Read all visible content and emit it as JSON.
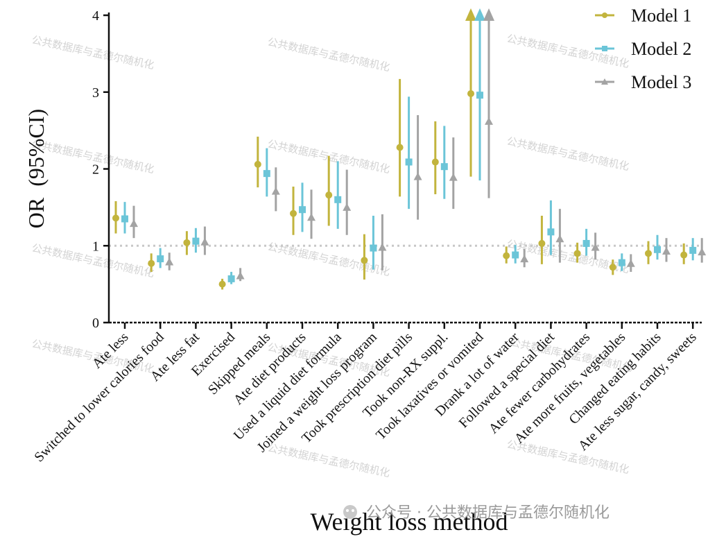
{
  "chart_data": {
    "type": "scatter",
    "subtype": "error-bar",
    "xlabel": "Weight loss method",
    "ylabel": "OR  (95%CI)",
    "ylim": [
      0,
      4
    ],
    "yticks": [
      0,
      1,
      2,
      3,
      4
    ],
    "reference_line": 1,
    "legend_position": "top-right",
    "categories": [
      "Ate less",
      "Switched to lower calories food",
      "Ate less fat",
      "Exercised",
      "Skipped meals",
      "Ate diet products",
      "Used a liquid diet formula",
      "Joined a weight loss program",
      "Took prescription diet pills",
      "Took non-RX suppl.",
      "Took laxatives or vomited",
      "Drank a lot of water",
      "Followed a special diet",
      "Ate fewer carbohydrates",
      "Ate more fruits, vegetables",
      "Changed eating habits",
      "Ate less sugar, candy, sweets"
    ],
    "series": [
      {
        "name": "Model 1",
        "color": "#c2b43d",
        "marker": "circle",
        "or": [
          1.36,
          0.77,
          1.04,
          0.5,
          2.06,
          1.42,
          1.66,
          0.81,
          2.28,
          2.09,
          2.98,
          0.87,
          1.03,
          0.9,
          0.72,
          0.9,
          0.88
        ],
        "lower": [
          1.16,
          0.66,
          0.88,
          0.43,
          1.76,
          1.14,
          1.26,
          0.56,
          1.64,
          1.67,
          1.9,
          0.77,
          0.76,
          0.78,
          0.62,
          0.76,
          0.76
        ],
        "upper": [
          1.58,
          0.9,
          1.19,
          0.57,
          2.42,
          1.77,
          2.17,
          1.15,
          3.17,
          2.62,
          4.0,
          0.99,
          1.39,
          1.04,
          0.82,
          1.06,
          1.03
        ],
        "capped_upper": [
          false,
          false,
          false,
          false,
          false,
          false,
          false,
          false,
          false,
          false,
          true,
          false,
          false,
          false,
          false,
          false,
          false
        ]
      },
      {
        "name": "Model 2",
        "color": "#6bc5d8",
        "marker": "square",
        "or": [
          1.35,
          0.83,
          1.06,
          0.57,
          1.94,
          1.47,
          1.6,
          0.97,
          2.09,
          2.03,
          2.96,
          0.88,
          1.18,
          1.03,
          0.78,
          0.95,
          0.94
        ],
        "lower": [
          1.16,
          0.71,
          0.91,
          0.5,
          1.64,
          1.18,
          1.22,
          0.69,
          1.48,
          1.61,
          1.85,
          0.77,
          0.88,
          0.87,
          0.67,
          0.82,
          0.81
        ],
        "upper": [
          1.57,
          0.97,
          1.23,
          0.66,
          2.27,
          1.82,
          2.1,
          1.39,
          2.94,
          2.56,
          4.0,
          1.01,
          1.59,
          1.22,
          0.9,
          1.14,
          1.1
        ],
        "capped_upper": [
          false,
          false,
          false,
          false,
          false,
          false,
          false,
          false,
          false,
          false,
          true,
          false,
          false,
          false,
          false,
          false,
          false
        ]
      },
      {
        "name": "Model 3",
        "color": "#a3a3a3",
        "marker": "triangle",
        "or": [
          1.29,
          0.79,
          1.05,
          0.61,
          1.71,
          1.37,
          1.5,
          0.98,
          1.9,
          1.89,
          2.62,
          0.83,
          1.09,
          0.98,
          0.77,
          0.93,
          0.92
        ],
        "lower": [
          1.1,
          0.68,
          0.88,
          0.54,
          1.45,
          1.09,
          1.14,
          0.68,
          1.34,
          1.48,
          1.62,
          0.72,
          0.78,
          0.82,
          0.66,
          0.79,
          0.78
        ],
        "upper": [
          1.52,
          0.91,
          1.25,
          0.71,
          2.02,
          1.73,
          1.99,
          1.41,
          2.7,
          2.41,
          4.0,
          0.96,
          1.48,
          1.17,
          0.89,
          1.1,
          1.1
        ],
        "capped_upper": [
          false,
          false,
          false,
          false,
          false,
          false,
          false,
          false,
          false,
          false,
          true,
          false,
          false,
          false,
          false,
          false,
          false
        ]
      }
    ]
  },
  "watermark_text": "公共数据库与孟德尔随机化",
  "footer_text": "公众号 · 公共数据库与孟德尔随机化"
}
